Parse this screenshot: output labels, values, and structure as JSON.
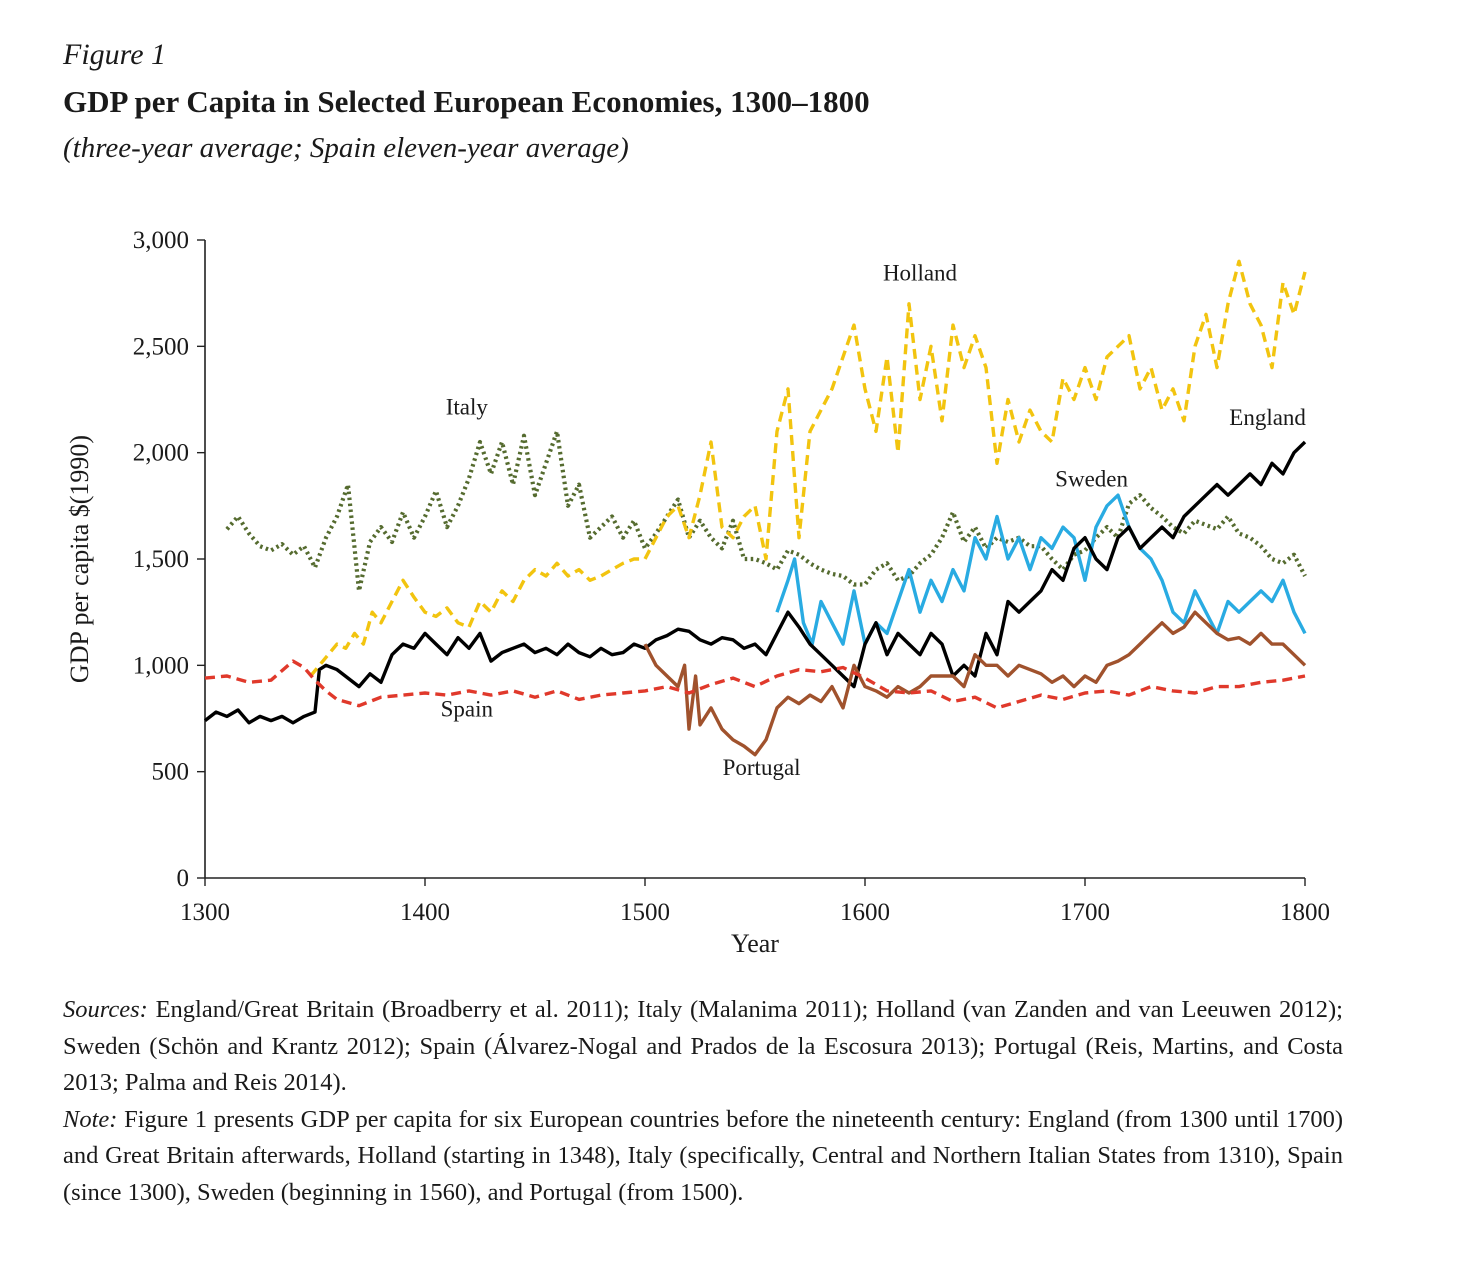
{
  "figure_label": "Figure 1",
  "title": "GDP per Capita in Selected European Economies, 1300–1800",
  "subtitle": "(three-year average; Spain eleven-year average)",
  "sources_lead": "Sources:",
  "sources_text": " England/Great Britain (Broadberry et al. 2011); Italy (Malanima 2011); Holland (van Zanden and van Leeuwen 2012); Sweden (Schön and Krantz 2012); Spain (Álvarez-Nogal and Prados de la Escosura 2013); Portugal (Reis, Martins, and Costa 2013; Palma and Reis 2014).",
  "note_lead": "Note:",
  "note_text": " Figure 1 presents GDP per capita for six European countries before the nineteenth century: England (from 1300 until 1700) and Great Britain afterwards, Holland (starting in 1348), Italy (specifically, Central and Northern Italian States from 1310), Spain (since 1300), Sweden (beginning in 1560), and Portugal (from 1500).",
  "chart_data": {
    "type": "line",
    "xlabel": "Year",
    "ylabel": "GDP per capita $(1990)",
    "xlim": [
      1300,
      1800
    ],
    "ylim": [
      0,
      3000
    ],
    "xticks": [
      1300,
      1400,
      1500,
      1600,
      1700,
      1800
    ],
    "yticks": [
      0,
      500,
      1000,
      1500,
      2000,
      2500,
      3000
    ],
    "ytick_labels": [
      "0",
      "500",
      "1,000",
      "1,500",
      "2,000",
      "2,500",
      "3,000"
    ],
    "grid": false,
    "legend": "none",
    "series": [
      {
        "name": "Italy",
        "color": "#556b2f",
        "style": "dotted",
        "x": [
          1310,
          1315,
          1320,
          1325,
          1330,
          1335,
          1340,
          1345,
          1350,
          1355,
          1360,
          1365,
          1370,
          1375,
          1380,
          1385,
          1390,
          1395,
          1400,
          1405,
          1410,
          1415,
          1420,
          1425,
          1430,
          1435,
          1440,
          1445,
          1450,
          1455,
          1460,
          1465,
          1470,
          1475,
          1480,
          1485,
          1490,
          1495,
          1500,
          1505,
          1510,
          1515,
          1520,
          1525,
          1530,
          1535,
          1540,
          1545,
          1550,
          1555,
          1560,
          1565,
          1570,
          1575,
          1580,
          1585,
          1590,
          1595,
          1600,
          1605,
          1610,
          1615,
          1620,
          1625,
          1630,
          1635,
          1640,
          1645,
          1650,
          1655,
          1660,
          1665,
          1670,
          1675,
          1680,
          1685,
          1690,
          1695,
          1700,
          1705,
          1710,
          1715,
          1720,
          1725,
          1730,
          1735,
          1740,
          1745,
          1750,
          1755,
          1760,
          1765,
          1770,
          1775,
          1780,
          1785,
          1790,
          1795,
          1800
        ],
        "y": [
          1640,
          1700,
          1620,
          1560,
          1540,
          1570,
          1520,
          1560,
          1460,
          1600,
          1700,
          1850,
          1350,
          1580,
          1650,
          1580,
          1720,
          1600,
          1700,
          1820,
          1650,
          1750,
          1880,
          2050,
          1900,
          2050,
          1850,
          2080,
          1800,
          1950,
          2100,
          1750,
          1850,
          1600,
          1650,
          1700,
          1600,
          1680,
          1550,
          1620,
          1700,
          1780,
          1600,
          1680,
          1600,
          1550,
          1680,
          1500,
          1500,
          1480,
          1450,
          1540,
          1520,
          1480,
          1450,
          1430,
          1420,
          1380,
          1380,
          1450,
          1480,
          1400,
          1420,
          1480,
          1520,
          1600,
          1720,
          1580,
          1650,
          1550,
          1600,
          1580,
          1600,
          1560,
          1560,
          1500,
          1450,
          1520,
          1540,
          1600,
          1650,
          1600,
          1760,
          1800,
          1740,
          1700,
          1650,
          1620,
          1680,
          1660,
          1640,
          1700,
          1620,
          1600,
          1560,
          1500,
          1480,
          1520,
          1420
        ]
      },
      {
        "name": "Holland",
        "color": "#f2c40f",
        "style": "dashed",
        "x": [
          1348,
          1352,
          1356,
          1360,
          1364,
          1368,
          1372,
          1376,
          1380,
          1385,
          1390,
          1395,
          1400,
          1405,
          1410,
          1415,
          1420,
          1425,
          1430,
          1435,
          1440,
          1445,
          1450,
          1455,
          1460,
          1465,
          1470,
          1475,
          1480,
          1485,
          1490,
          1495,
          1500,
          1505,
          1510,
          1515,
          1520,
          1525,
          1530,
          1535,
          1540,
          1545,
          1550,
          1555,
          1560,
          1565,
          1570,
          1575,
          1580,
          1585,
          1590,
          1595,
          1600,
          1605,
          1610,
          1615,
          1620,
          1625,
          1630,
          1635,
          1640,
          1645,
          1650,
          1655,
          1660,
          1665,
          1670,
          1675,
          1680,
          1685,
          1690,
          1695,
          1700,
          1705,
          1710,
          1715,
          1720,
          1725,
          1730,
          1735,
          1740,
          1745,
          1750,
          1755,
          1760,
          1765,
          1770,
          1775,
          1780,
          1785,
          1790,
          1795,
          1800
        ],
        "y": [
          950,
          1000,
          1050,
          1100,
          1080,
          1150,
          1100,
          1250,
          1200,
          1300,
          1400,
          1320,
          1250,
          1230,
          1270,
          1200,
          1180,
          1300,
          1250,
          1350,
          1300,
          1400,
          1450,
          1420,
          1480,
          1420,
          1450,
          1400,
          1420,
          1450,
          1480,
          1500,
          1500,
          1600,
          1700,
          1750,
          1600,
          1800,
          2050,
          1650,
          1600,
          1700,
          1750,
          1500,
          2100,
          2300,
          1600,
          2100,
          2200,
          2300,
          2450,
          2600,
          2300,
          2100,
          2450,
          2000,
          2700,
          2250,
          2500,
          2150,
          2600,
          2400,
          2550,
          2400,
          1950,
          2250,
          2050,
          2200,
          2100,
          2050,
          2350,
          2250,
          2400,
          2250,
          2450,
          2500,
          2550,
          2300,
          2400,
          2200,
          2300,
          2150,
          2500,
          2650,
          2400,
          2700,
          2900,
          2700,
          2600,
          2400,
          2800,
          2650,
          2850
        ]
      },
      {
        "name": "Sweden",
        "color": "#29abe2",
        "style": "solid",
        "x": [
          1560,
          1565,
          1568,
          1572,
          1576,
          1580,
          1585,
          1590,
          1595,
          1600,
          1605,
          1610,
          1615,
          1620,
          1625,
          1630,
          1635,
          1640,
          1645,
          1650,
          1655,
          1660,
          1665,
          1670,
          1675,
          1680,
          1685,
          1690,
          1695,
          1700,
          1705,
          1710,
          1715,
          1720,
          1725,
          1730,
          1735,
          1740,
          1745,
          1750,
          1755,
          1760,
          1765,
          1770,
          1775,
          1780,
          1785,
          1790,
          1795,
          1800
        ],
        "y": [
          1250,
          1400,
          1500,
          1200,
          1100,
          1300,
          1200,
          1100,
          1350,
          1100,
          1200,
          1150,
          1300,
          1450,
          1250,
          1400,
          1300,
          1450,
          1350,
          1600,
          1500,
          1700,
          1500,
          1600,
          1450,
          1600,
          1550,
          1650,
          1600,
          1400,
          1650,
          1750,
          1800,
          1650,
          1550,
          1500,
          1400,
          1250,
          1200,
          1350,
          1250,
          1150,
          1300,
          1250,
          1300,
          1350,
          1300,
          1400,
          1250,
          1150
        ]
      },
      {
        "name": "England",
        "color": "#000000",
        "style": "solid",
        "x": [
          1300,
          1305,
          1310,
          1315,
          1320,
          1325,
          1330,
          1335,
          1340,
          1345,
          1350,
          1352,
          1355,
          1360,
          1365,
          1370,
          1375,
          1380,
          1385,
          1390,
          1395,
          1400,
          1405,
          1410,
          1415,
          1420,
          1425,
          1430,
          1435,
          1440,
          1445,
          1450,
          1455,
          1460,
          1465,
          1470,
          1475,
          1480,
          1485,
          1490,
          1495,
          1500,
          1505,
          1510,
          1515,
          1520,
          1525,
          1530,
          1535,
          1540,
          1545,
          1550,
          1555,
          1560,
          1565,
          1570,
          1575,
          1580,
          1585,
          1590,
          1595,
          1600,
          1605,
          1610,
          1615,
          1620,
          1625,
          1630,
          1635,
          1640,
          1645,
          1650,
          1655,
          1660,
          1665,
          1670,
          1675,
          1680,
          1685,
          1690,
          1695,
          1700,
          1705,
          1710,
          1715,
          1720,
          1725,
          1730,
          1735,
          1740,
          1745,
          1750,
          1755,
          1760,
          1765,
          1770,
          1775,
          1780,
          1785,
          1790,
          1795,
          1800
        ],
        "y": [
          740,
          780,
          760,
          790,
          730,
          760,
          740,
          760,
          730,
          760,
          780,
          980,
          1000,
          980,
          940,
          900,
          960,
          920,
          1050,
          1100,
          1080,
          1150,
          1100,
          1050,
          1130,
          1080,
          1150,
          1020,
          1060,
          1080,
          1100,
          1060,
          1080,
          1050,
          1100,
          1060,
          1040,
          1080,
          1050,
          1060,
          1100,
          1080,
          1120,
          1140,
          1170,
          1160,
          1120,
          1100,
          1130,
          1120,
          1080,
          1100,
          1050,
          1150,
          1250,
          1180,
          1100,
          1050,
          1000,
          950,
          900,
          1100,
          1200,
          1050,
          1150,
          1100,
          1050,
          1150,
          1100,
          950,
          1000,
          950,
          1150,
          1050,
          1300,
          1250,
          1300,
          1350,
          1450,
          1400,
          1550,
          1600,
          1500,
          1450,
          1600,
          1650,
          1550,
          1600,
          1650,
          1600,
          1700,
          1750,
          1800,
          1850,
          1800,
          1850,
          1900,
          1850,
          1950,
          1900,
          2000,
          2050
        ]
      },
      {
        "name": "Portugal",
        "color": "#a0522d",
        "style": "solid",
        "x": [
          1500,
          1505,
          1510,
          1515,
          1518,
          1520,
          1523,
          1525,
          1530,
          1535,
          1540,
          1545,
          1550,
          1555,
          1560,
          1565,
          1570,
          1575,
          1580,
          1585,
          1590,
          1595,
          1600,
          1605,
          1610,
          1615,
          1620,
          1625,
          1630,
          1635,
          1640,
          1645,
          1650,
          1655,
          1660,
          1665,
          1670,
          1675,
          1680,
          1685,
          1690,
          1695,
          1700,
          1705,
          1710,
          1715,
          1720,
          1725,
          1730,
          1735,
          1740,
          1745,
          1750,
          1755,
          1760,
          1765,
          1770,
          1775,
          1780,
          1785,
          1790,
          1795,
          1800
        ],
        "y": [
          1100,
          1000,
          950,
          900,
          1000,
          700,
          950,
          720,
          800,
          700,
          650,
          620,
          580,
          650,
          800,
          850,
          820,
          860,
          830,
          900,
          800,
          1000,
          900,
          880,
          850,
          900,
          870,
          900,
          950,
          950,
          950,
          900,
          1050,
          1000,
          1000,
          950,
          1000,
          980,
          960,
          920,
          950,
          900,
          950,
          920,
          1000,
          1020,
          1050,
          1100,
          1150,
          1200,
          1150,
          1180,
          1250,
          1200,
          1150,
          1120,
          1130,
          1100,
          1150,
          1100,
          1100,
          1050,
          1000
        ]
      },
      {
        "name": "Spain",
        "color": "#e0392b",
        "style": "dashed",
        "x": [
          1300,
          1310,
          1320,
          1330,
          1340,
          1345,
          1350,
          1355,
          1360,
          1370,
          1380,
          1390,
          1400,
          1410,
          1420,
          1430,
          1440,
          1450,
          1460,
          1470,
          1480,
          1490,
          1500,
          1510,
          1520,
          1530,
          1540,
          1550,
          1560,
          1570,
          1580,
          1590,
          1600,
          1610,
          1620,
          1630,
          1640,
          1650,
          1660,
          1670,
          1680,
          1690,
          1700,
          1710,
          1720,
          1730,
          1740,
          1750,
          1760,
          1770,
          1780,
          1790,
          1800
        ],
        "y": [
          940,
          950,
          920,
          930,
          1020,
          990,
          930,
          880,
          840,
          810,
          850,
          860,
          870,
          860,
          880,
          860,
          880,
          850,
          880,
          840,
          860,
          870,
          880,
          900,
          870,
          910,
          940,
          900,
          950,
          980,
          970,
          990,
          940,
          880,
          870,
          880,
          830,
          850,
          800,
          830,
          860,
          840,
          870,
          880,
          860,
          900,
          880,
          870,
          900,
          900,
          920,
          930,
          950
        ]
      }
    ],
    "annotations": [
      {
        "text": "Italy",
        "x": 1419,
        "y": 2180
      },
      {
        "text": "Holland",
        "x": 1625,
        "y": 2810
      },
      {
        "text": "England",
        "x": 1783,
        "y": 2130
      },
      {
        "text": "Sweden",
        "x": 1703,
        "y": 1840
      },
      {
        "text": "Spain",
        "x": 1419,
        "y": 760
      },
      {
        "text": "Portugal",
        "x": 1553,
        "y": 485
      }
    ]
  }
}
